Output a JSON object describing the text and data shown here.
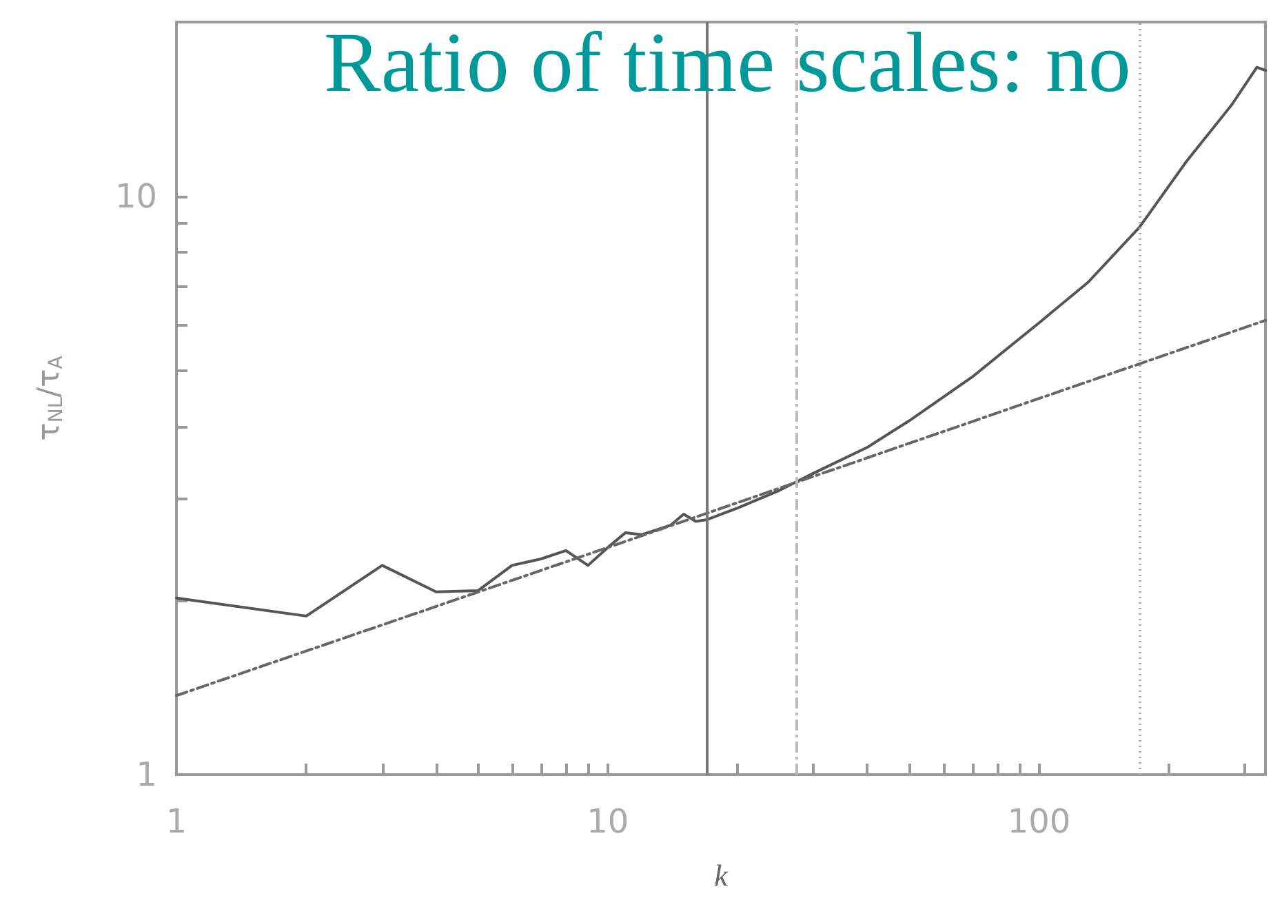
{
  "chart_data": {
    "type": "line",
    "title": "Ratio of time scales: no",
    "xlabel": "k",
    "ylabel": "τ$_{NL}$/τ$_{A}$",
    "log": "xy",
    "xlim": [
      1,
      335
    ],
    "ylim": [
      1,
      20
    ],
    "xticks": [
      1,
      {
        "value": 2,
        "label": null
      },
      {
        "value": 3,
        "label": null
      },
      {
        "value": 4,
        "label": null
      },
      {
        "value": 5,
        "label": null
      },
      {
        "value": 6,
        "label": null
      },
      {
        "value": 7,
        "label": null
      },
      {
        "value": 8,
        "label": null
      },
      {
        "value": 9,
        "label": null
      },
      10,
      {
        "value": 20,
        "label": null
      },
      {
        "value": 30,
        "label": null
      },
      {
        "value": 40,
        "label": null
      },
      {
        "value": 50,
        "label": null
      },
      {
        "value": 60,
        "label": null
      },
      {
        "value": 70,
        "label": null
      },
      {
        "value": 80,
        "label": null
      },
      {
        "value": 90,
        "label": null
      },
      100,
      {
        "value": 200,
        "label": null
      },
      {
        "value": 300,
        "label": null
      }
    ],
    "yticks": [
      1,
      {
        "value": 2,
        "label": null
      },
      {
        "value": 3,
        "label": null
      },
      {
        "value": 4,
        "label": null
      },
      {
        "value": 5,
        "label": null
      },
      {
        "value": 6,
        "label": null
      },
      {
        "value": 7,
        "label": null
      },
      {
        "value": 8,
        "label": null
      },
      {
        "value": 9,
        "label": null
      },
      10,
      {
        "value": 20,
        "label": null
      }
    ],
    "grid": false,
    "marker": "none",
    "series": [
      {
        "x": [
          1,
          2,
          3,
          4,
          5,
          6,
          7,
          8,
          9,
          10,
          11,
          12,
          13,
          14,
          15,
          16,
          17,
          20,
          25,
          30,
          40,
          50,
          70,
          100,
          130,
          171,
          220,
          280,
          320,
          335
        ],
        "values": [
          2.02,
          1.88,
          2.3,
          2.07,
          2.08,
          2.3,
          2.36,
          2.44,
          2.3,
          2.47,
          2.62,
          2.6,
          2.65,
          2.7,
          2.82,
          2.74,
          2.76,
          2.89,
          3.1,
          3.32,
          3.68,
          4.09,
          4.87,
          6.04,
          7.1,
          8.84,
          11.5,
          14.4,
          16.7,
          16.5
        ],
        "color": "#555555"
      },
      {
        "x": [
          1,
          10,
          100,
          335
        ],
        "values": [
          1.37,
          2.47,
          4.47,
          6.1
        ],
        "color": "#666666",
        "line_style": "dashed"
      }
    ],
    "ref_lines": [
      {
        "axis": "x",
        "value": 17,
        "color": "#777777",
        "line_style": "solid"
      },
      {
        "axis": "x",
        "value": 27.4,
        "color": "#bbbbbb",
        "line_style": "dashed"
      },
      {
        "axis": "x",
        "value": 171,
        "color": "#aaaaaa",
        "line_style": "dotted"
      }
    ]
  }
}
